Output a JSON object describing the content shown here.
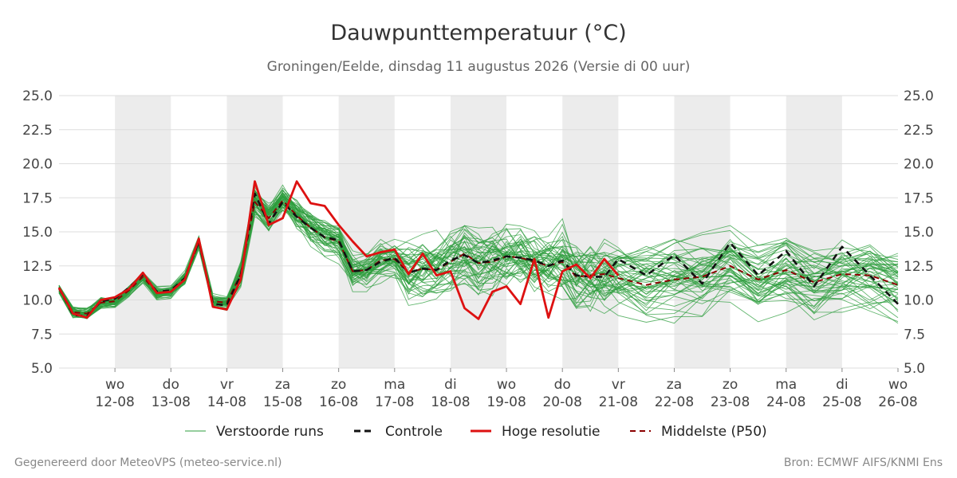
{
  "chart_data": {
    "type": "line",
    "title": "Dauwpunttemperatuur (°C)",
    "subtitle": "Groningen/Eelde, dinsdag 11 augustus 2026 (Versie di 00 uur)",
    "ylim": [
      5.0,
      25.0
    ],
    "yticks": [
      "5.0",
      "7.5",
      "10.0",
      "12.5",
      "15.0",
      "17.5",
      "20.0",
      "22.5",
      "25.0"
    ],
    "grid": true,
    "legend_position": "bottom",
    "x_start": "2026-08-11T00:00",
    "x_end": "2026-08-26T00:00",
    "day_ticks": [
      {
        "date": "2026-08-12",
        "day": "wo",
        "label": "12-08"
      },
      {
        "date": "2026-08-13",
        "day": "do",
        "label": "13-08"
      },
      {
        "date": "2026-08-14",
        "day": "vr",
        "label": "14-08"
      },
      {
        "date": "2026-08-15",
        "day": "za",
        "label": "15-08"
      },
      {
        "date": "2026-08-16",
        "day": "zo",
        "label": "16-08"
      },
      {
        "date": "2026-08-17",
        "day": "ma",
        "label": "17-08"
      },
      {
        "date": "2026-08-18",
        "day": "di",
        "label": "18-08"
      },
      {
        "date": "2026-08-19",
        "day": "wo",
        "label": "19-08"
      },
      {
        "date": "2026-08-20",
        "day": "do",
        "label": "20-08"
      },
      {
        "date": "2026-08-21",
        "day": "vr",
        "label": "21-08"
      },
      {
        "date": "2026-08-22",
        "day": "za",
        "label": "22-08"
      },
      {
        "date": "2026-08-23",
        "day": "zo",
        "label": "23-08"
      },
      {
        "date": "2026-08-24",
        "day": "ma",
        "label": "24-08"
      },
      {
        "date": "2026-08-25",
        "day": "di",
        "label": "25-08"
      },
      {
        "date": "2026-08-26",
        "day": "wo",
        "label": "26-08"
      }
    ],
    "shaded_days": [
      "2026-08-12",
      "2026-08-14",
      "2026-08-16",
      "2026-08-18",
      "2026-08-20",
      "2026-08-22",
      "2026-08-24"
    ],
    "colors": {
      "ensemble": "#2e9e3e",
      "control": "#111111",
      "hires": "#dd1111",
      "median": "#8b0000",
      "shade": "#ececec",
      "grid": "#dddddd"
    },
    "ensemble_members": 50,
    "series": [
      {
        "name": "Controle",
        "style": "dashed-black",
        "x": [
          "2026-08-11T00:00",
          "2026-08-11T06:00",
          "2026-08-11T12:00",
          "2026-08-11T18:00",
          "2026-08-12T00:00",
          "2026-08-12T06:00",
          "2026-08-12T12:00",
          "2026-08-12T18:00",
          "2026-08-13T00:00",
          "2026-08-13T06:00",
          "2026-08-13T12:00",
          "2026-08-13T18:00",
          "2026-08-14T00:00",
          "2026-08-14T06:00",
          "2026-08-14T12:00",
          "2026-08-14T18:00",
          "2026-08-15T00:00",
          "2026-08-15T06:00",
          "2026-08-15T12:00",
          "2026-08-15T18:00",
          "2026-08-16T00:00",
          "2026-08-16T06:00",
          "2026-08-16T12:00",
          "2026-08-16T18:00",
          "2026-08-17T00:00",
          "2026-08-17T06:00",
          "2026-08-17T12:00",
          "2026-08-17T18:00",
          "2026-08-18T00:00",
          "2026-08-18T06:00",
          "2026-08-18T12:00",
          "2026-08-18T18:00",
          "2026-08-19T00:00",
          "2026-08-19T06:00",
          "2026-08-19T12:00",
          "2026-08-19T18:00",
          "2026-08-20T00:00",
          "2026-08-20T06:00",
          "2026-08-20T12:00",
          "2026-08-20T18:00",
          "2026-08-21T00:00",
          "2026-08-21T12:00",
          "2026-08-22T00:00",
          "2026-08-22T12:00",
          "2026-08-23T00:00",
          "2026-08-23T12:00",
          "2026-08-24T00:00",
          "2026-08-24T12:00",
          "2026-08-25T00:00",
          "2026-08-25T12:00",
          "2026-08-26T00:00"
        ],
        "values": [
          10.9,
          8.9,
          8.8,
          9.9,
          10.1,
          10.9,
          11.9,
          10.6,
          10.7,
          11.6,
          14.3,
          9.7,
          9.6,
          11.8,
          17.8,
          15.6,
          17.2,
          16.1,
          15.3,
          14.6,
          14.4,
          12.1,
          12.2,
          12.8,
          13.1,
          12.0,
          12.3,
          12.2,
          12.9,
          13.3,
          12.7,
          12.9,
          13.2,
          13.1,
          12.9,
          12.5,
          12.9,
          11.8,
          11.7,
          11.7,
          13.0,
          11.8,
          13.3,
          11.2,
          14.2,
          11.8,
          13.6,
          11.0,
          13.9,
          11.8,
          9.7
        ]
      },
      {
        "name": "Hoge resolutie",
        "style": "solid-red",
        "x": [
          "2026-08-11T00:00",
          "2026-08-11T06:00",
          "2026-08-11T12:00",
          "2026-08-11T18:00",
          "2026-08-12T00:00",
          "2026-08-12T06:00",
          "2026-08-12T12:00",
          "2026-08-12T18:00",
          "2026-08-13T00:00",
          "2026-08-13T06:00",
          "2026-08-13T12:00",
          "2026-08-13T18:00",
          "2026-08-14T00:00",
          "2026-08-14T06:00",
          "2026-08-14T12:00",
          "2026-08-14T18:00",
          "2026-08-15T00:00",
          "2026-08-15T06:00",
          "2026-08-15T12:00",
          "2026-08-15T18:00",
          "2026-08-16T00:00",
          "2026-08-16T06:00",
          "2026-08-16T12:00",
          "2026-08-16T18:00",
          "2026-08-17T00:00",
          "2026-08-17T06:00",
          "2026-08-17T12:00",
          "2026-08-17T18:00",
          "2026-08-18T00:00",
          "2026-08-18T06:00",
          "2026-08-18T12:00",
          "2026-08-18T18:00",
          "2026-08-19T00:00",
          "2026-08-19T06:00",
          "2026-08-19T12:00",
          "2026-08-19T18:00",
          "2026-08-20T00:00",
          "2026-08-20T06:00",
          "2026-08-20T12:00",
          "2026-08-20T18:00",
          "2026-08-21T00:00"
        ],
        "values": [
          10.9,
          9.0,
          8.7,
          10.0,
          10.2,
          10.8,
          12.0,
          10.5,
          10.6,
          11.5,
          14.5,
          9.5,
          9.3,
          11.5,
          18.7,
          15.5,
          16.0,
          18.7,
          17.1,
          16.9,
          15.5,
          14.3,
          13.2,
          13.5,
          13.7,
          11.9,
          13.4,
          11.8,
          12.1,
          9.4,
          8.6,
          10.6,
          11.0,
          9.7,
          13.0,
          8.7,
          12.1,
          12.6,
          11.6,
          13.0,
          11.8
        ]
      },
      {
        "name": "Middelste (P50)",
        "style": "dashed-darkred",
        "x": [
          "2026-08-11T00:00",
          "2026-08-11T06:00",
          "2026-08-11T12:00",
          "2026-08-11T18:00",
          "2026-08-12T00:00",
          "2026-08-12T06:00",
          "2026-08-12T12:00",
          "2026-08-12T18:00",
          "2026-08-13T00:00",
          "2026-08-13T06:00",
          "2026-08-13T12:00",
          "2026-08-13T18:00",
          "2026-08-14T00:00",
          "2026-08-14T06:00",
          "2026-08-14T12:00",
          "2026-08-14T18:00",
          "2026-08-15T00:00",
          "2026-08-15T06:00",
          "2026-08-15T12:00",
          "2026-08-15T18:00",
          "2026-08-16T00:00",
          "2026-08-16T06:00",
          "2026-08-16T12:00",
          "2026-08-16T18:00",
          "2026-08-17T00:00",
          "2026-08-17T06:00",
          "2026-08-17T12:00",
          "2026-08-17T18:00",
          "2026-08-18T00:00",
          "2026-08-18T06:00",
          "2026-08-18T12:00",
          "2026-08-18T18:00",
          "2026-08-19T00:00",
          "2026-08-19T06:00",
          "2026-08-19T12:00",
          "2026-08-19T18:00",
          "2026-08-20T00:00",
          "2026-08-20T06:00",
          "2026-08-20T12:00",
          "2026-08-20T18:00",
          "2026-08-21T00:00",
          "2026-08-21T12:00",
          "2026-08-22T00:00",
          "2026-08-22T12:00",
          "2026-08-23T00:00",
          "2026-08-23T12:00",
          "2026-08-24T00:00",
          "2026-08-24T12:00",
          "2026-08-25T00:00",
          "2026-08-25T12:00",
          "2026-08-26T00:00"
        ],
        "values": [
          10.8,
          9.1,
          9.0,
          9.8,
          9.9,
          10.7,
          11.7,
          10.5,
          10.6,
          11.6,
          14.2,
          9.9,
          9.8,
          11.9,
          17.2,
          16.0,
          17.3,
          16.2,
          15.3,
          14.6,
          14.3,
          12.1,
          12.2,
          12.9,
          13.0,
          12.0,
          12.3,
          12.2,
          12.8,
          13.4,
          12.7,
          12.8,
          13.2,
          13.1,
          12.8,
          12.5,
          12.8,
          11.7,
          11.8,
          11.9,
          11.6,
          11.1,
          11.5,
          11.7,
          12.5,
          11.5,
          12.2,
          11.3,
          11.9,
          11.8,
          11.1
        ]
      }
    ],
    "legend": [
      {
        "label": "Verstoorde runs",
        "style": "thin-green"
      },
      {
        "label": "Controle",
        "style": "dashed-black"
      },
      {
        "label": "Hoge resolutie",
        "style": "solid-red"
      },
      {
        "label": "Middelste (P50)",
        "style": "dashed-darkred"
      }
    ]
  },
  "footer": {
    "left": "Gegenereerd door MeteoVPS (meteo-service.nl)",
    "right": "Bron: ECMWF AIFS/KNMI Ens"
  }
}
